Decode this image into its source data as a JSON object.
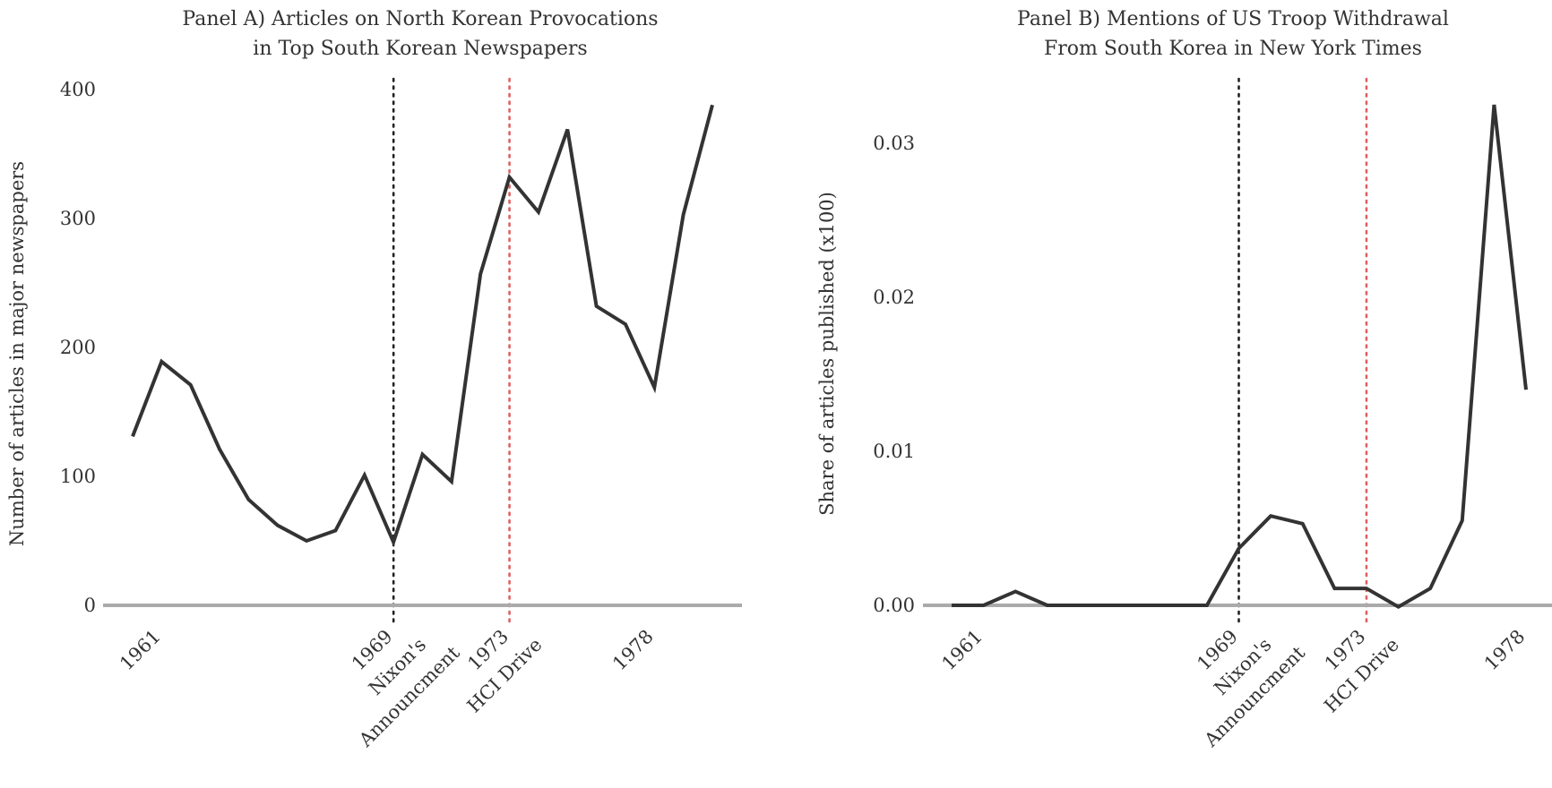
{
  "chart_data": [
    {
      "type": "line",
      "title_lines": [
        "Panel A) Articles on North Korean Provocations",
        "in Top South Korean Newspapers"
      ],
      "xlabel": "",
      "ylabel": "Number of articles in major newspapers",
      "ylim": [
        0,
        400
      ],
      "yticks": [
        "0",
        "100",
        "200",
        "300",
        "400"
      ],
      "xticks": [
        {
          "x": 1961,
          "lines": [
            "1961"
          ]
        },
        {
          "x": 1969,
          "lines": [
            "1969",
            "Nixon's",
            "Announcment"
          ]
        },
        {
          "x": 1973,
          "lines": [
            "1973",
            "HCI Drive"
          ]
        },
        {
          "x": 1978,
          "lines": [
            "1978"
          ]
        }
      ],
      "vlines": [
        {
          "x": 1969,
          "color": "#222222",
          "style": "dotted"
        },
        {
          "x": 1973,
          "color": "#e06060",
          "style": "dotted"
        }
      ],
      "grid": false,
      "line_color": "#333333",
      "x": [
        1960,
        1961,
        1962,
        1963,
        1964,
        1965,
        1966,
        1967,
        1968,
        1969,
        1970,
        1971,
        1972,
        1973,
        1974,
        1975,
        1976,
        1977,
        1978,
        1979,
        1980
      ],
      "values": [
        131,
        189,
        171,
        121,
        82,
        62,
        50,
        58,
        101,
        49,
        117,
        96,
        257,
        332,
        305,
        369,
        232,
        218,
        169,
        303,
        388
      ]
    },
    {
      "type": "line",
      "title_lines": [
        "Panel B) Mentions of US Troop Withdrawal",
        "From South Korea in New York Times"
      ],
      "xlabel": "",
      "ylabel": "Share of articles published (x100)",
      "ylim": [
        0,
        0.033
      ],
      "yticks": [
        "0.00",
        "0.01",
        "0.02",
        "0.03"
      ],
      "xticks": [
        {
          "x": 1961,
          "lines": [
            "1961"
          ]
        },
        {
          "x": 1969,
          "lines": [
            "1969",
            "Nixon's",
            "Announcment"
          ]
        },
        {
          "x": 1973,
          "lines": [
            "1973",
            "HCI Drive"
          ]
        },
        {
          "x": 1978,
          "lines": [
            "1978"
          ]
        }
      ],
      "vlines": [
        {
          "x": 1969,
          "color": "#222222",
          "style": "dotted"
        },
        {
          "x": 1973,
          "color": "#e06060",
          "style": "dotted"
        }
      ],
      "grid": false,
      "line_color": "#333333",
      "x": [
        1960,
        1961,
        1962,
        1963,
        1964,
        1965,
        1966,
        1967,
        1968,
        1969,
        1970,
        1971,
        1972,
        1973,
        1974,
        1975,
        1976,
        1977,
        1978
      ],
      "values": [
        0,
        0,
        0.0009,
        0,
        0,
        0,
        0,
        0,
        0,
        0.0037,
        0.0058,
        0.0053,
        0.0011,
        0.0011,
        -0.0001,
        0.0011,
        0.0055,
        0.0325,
        0.014
      ]
    }
  ]
}
